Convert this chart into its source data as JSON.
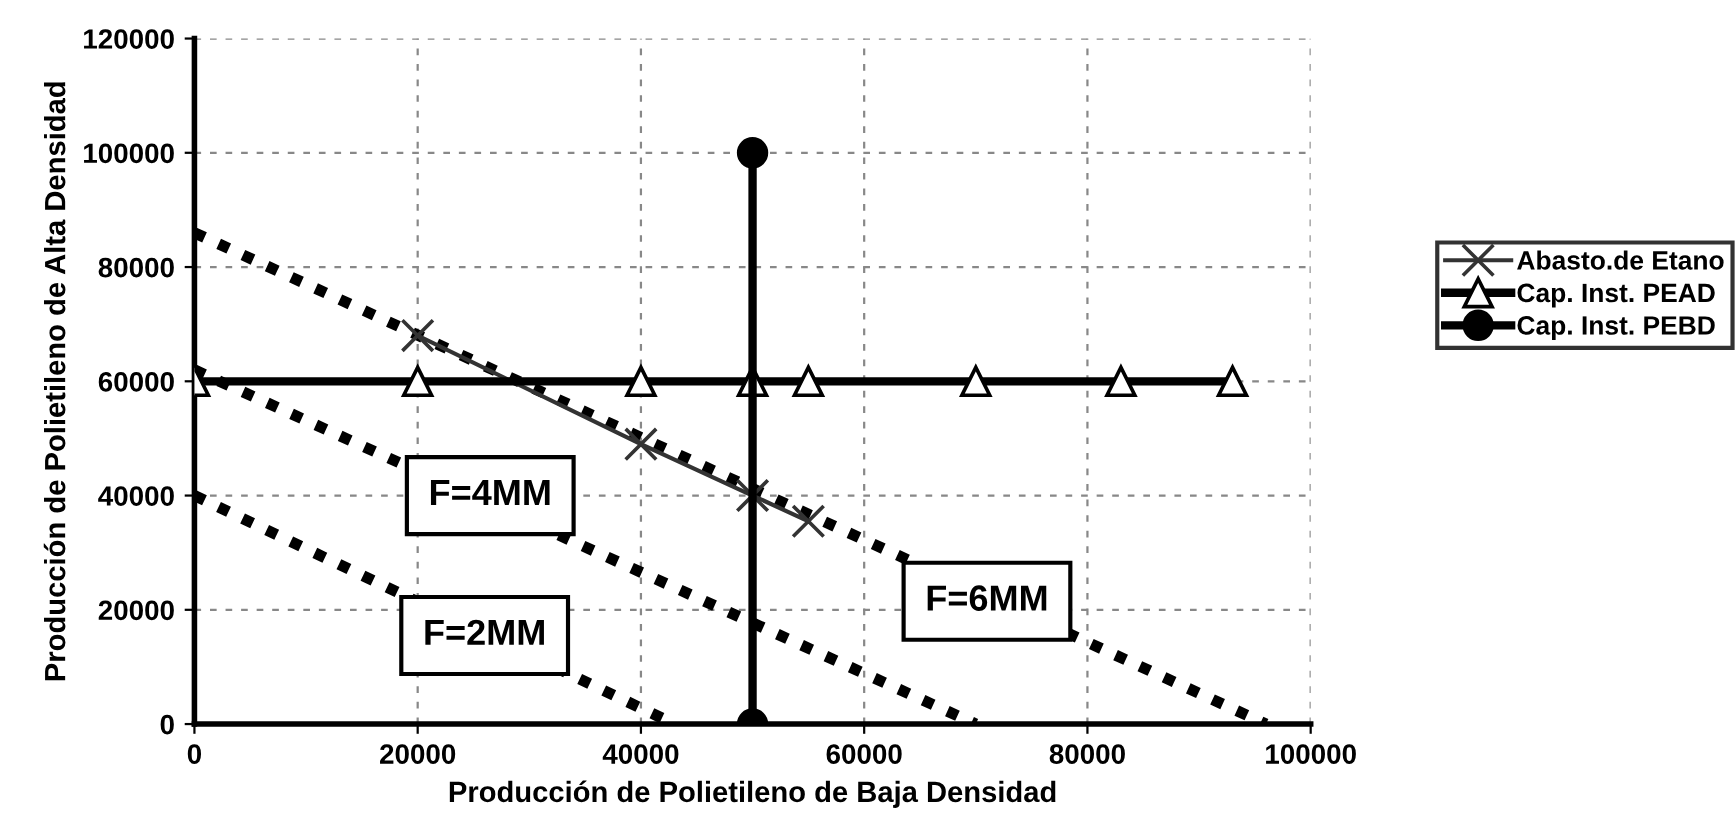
{
  "chart_data": {
    "type": "line",
    "xlabel": "Producción de Polietileno de Baja Densidad",
    "ylabel": "Producción de Polietileno de Alta Densidad",
    "xlim": [
      0,
      100000
    ],
    "ylim": [
      0,
      120000
    ],
    "xticks": [
      0,
      20000,
      40000,
      60000,
      80000,
      100000
    ],
    "yticks": [
      0,
      20000,
      40000,
      60000,
      80000,
      100000,
      120000
    ],
    "grid": true,
    "legend": "right",
    "series": [
      {
        "name": "Abasto.de Etano",
        "color": "#333333",
        "marker": "cross",
        "line_style": "solid",
        "x": [
          20000,
          40000,
          50000,
          55000
        ],
        "values": [
          68000,
          49000,
          40000,
          35500
        ]
      },
      {
        "name": "Cap. Inst. PEAD",
        "color": "#000000",
        "marker": "triangle",
        "line_style": "solid",
        "x": [
          0,
          20000,
          40000,
          50000,
          55000,
          70000,
          83000,
          93000
        ],
        "values": [
          60000,
          60000,
          60000,
          60000,
          60000,
          60000,
          60000,
          60000
        ]
      },
      {
        "name": "Cap. Inst. PEBD",
        "color": "#000000",
        "marker": "circle",
        "line_style": "solid",
        "x": [
          50000,
          50000
        ],
        "values": [
          0,
          100000
        ]
      },
      {
        "color": "#000000",
        "marker": "none",
        "line_style": "dotted",
        "x": [
          0,
          43000
        ],
        "values": [
          40000,
          0
        ]
      },
      {
        "color": "#000000",
        "marker": "none",
        "line_style": "dotted",
        "x": [
          0,
          70000
        ],
        "values": [
          62000,
          0
        ]
      },
      {
        "color": "#000000",
        "marker": "none",
        "line_style": "dotted",
        "x": [
          0,
          96000
        ],
        "values": [
          86000,
          0
        ]
      }
    ],
    "annotations": [
      {
        "text": "F=2MM",
        "x": 26000,
        "y": 15500
      },
      {
        "text": "F=4MM",
        "x": 26500,
        "y": 40000
      },
      {
        "text": "F=6MM",
        "x": 71000,
        "y": 21500
      }
    ]
  }
}
